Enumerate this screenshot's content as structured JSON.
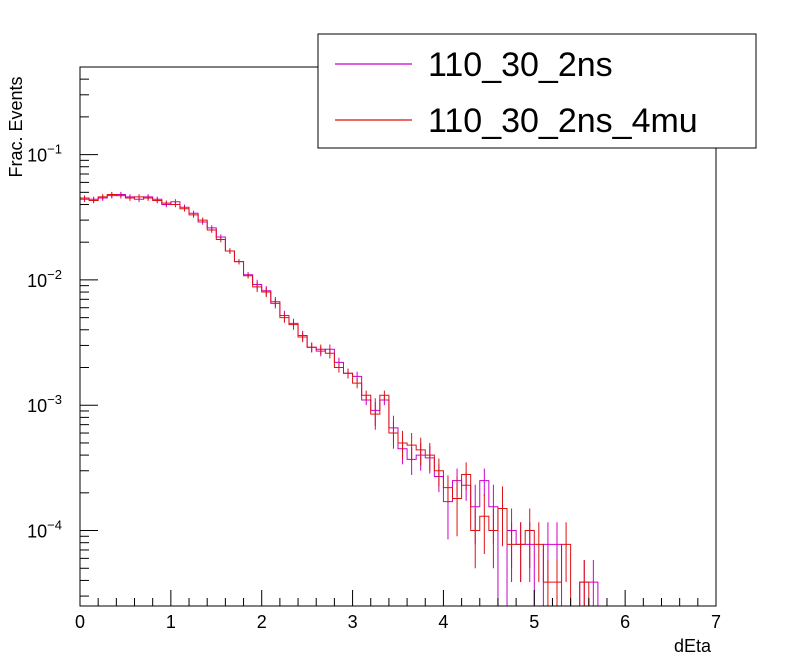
{
  "chart_data": {
    "type": "line",
    "style": "step-histogram",
    "xlabel": "dEta",
    "ylabel": "Frac. Events",
    "xlim": [
      0,
      7
    ],
    "ylim": [
      2.5e-05,
      0.5
    ],
    "yscale": "log",
    "grid": false,
    "legend_position": "top-right",
    "x_ticks": [
      "0",
      "1",
      "2",
      "3",
      "4",
      "5",
      "6",
      "7"
    ],
    "y_ticks": [
      {
        "value": 0.1,
        "base": "10",
        "exp": "−1"
      },
      {
        "value": 0.01,
        "base": "10",
        "exp": "−2"
      },
      {
        "value": 0.001,
        "base": "10",
        "exp": "−3"
      },
      {
        "value": 0.0001,
        "base": "10",
        "exp": "−4"
      }
    ],
    "bin_edges": [
      0,
      0.1,
      0.2,
      0.3,
      0.4,
      0.5,
      0.6,
      0.7,
      0.8,
      0.9,
      1.0,
      1.1,
      1.2,
      1.3,
      1.4,
      1.5,
      1.6,
      1.7,
      1.8,
      1.9,
      2.0,
      2.1,
      2.2,
      2.3,
      2.4,
      2.5,
      2.6,
      2.7,
      2.8,
      2.9,
      3.0,
      3.1,
      3.2,
      3.3,
      3.4,
      3.5,
      3.6,
      3.7,
      3.8,
      3.9,
      4.0,
      4.1,
      4.2,
      4.3,
      4.4,
      4.5,
      4.6,
      4.7,
      4.8,
      4.9,
      5.0,
      5.1,
      5.2,
      5.3,
      5.4,
      5.5,
      5.6,
      5.7
    ],
    "series": [
      {
        "name": "110_30_2ns",
        "color": "#cc00cc",
        "values": [
          0.044,
          0.044,
          0.045,
          0.047,
          0.048,
          0.046,
          0.044,
          0.046,
          0.044,
          0.04,
          0.042,
          0.038,
          0.034,
          0.029,
          0.026,
          0.022,
          0.017,
          0.014,
          0.011,
          0.0092,
          0.0082,
          0.0065,
          0.0052,
          0.0045,
          0.0036,
          0.0029,
          0.0027,
          0.0028,
          0.0022,
          0.0018,
          0.0017,
          0.0011,
          0.00091,
          0.0011,
          0.00066,
          0.00045,
          0.00037,
          0.0004,
          0.00038,
          0.00027,
          0.00017,
          0.00025,
          0.00023,
          0.000155,
          0.00025,
          0.000155,
          0.0,
          0.0001,
          7.76e-05,
          7.76e-05,
          0.0,
          7.76e-05,
          7.76e-05,
          0.0,
          0.0,
          3.88e-05,
          3.88e-05
        ]
      },
      {
        "name": "110_30_2ns_4mu",
        "color": "#dd1111",
        "values": [
          0.045,
          0.043,
          0.046,
          0.048,
          0.047,
          0.045,
          0.046,
          0.045,
          0.043,
          0.041,
          0.04,
          0.037,
          0.033,
          0.03,
          0.025,
          0.021,
          0.017,
          0.014,
          0.0108,
          0.0088,
          0.008,
          0.0067,
          0.005,
          0.0044,
          0.0035,
          0.0029,
          0.0028,
          0.0026,
          0.002,
          0.0018,
          0.0015,
          0.0012,
          0.00085,
          0.0012,
          0.0006,
          0.0005,
          0.00048,
          0.00044,
          0.0004,
          0.0003,
          0.00022,
          0.00018,
          0.00028,
          0.0001,
          0.00013,
          0.0001,
          0.00015,
          7.76e-05,
          7.76e-05,
          0.0001,
          7.76e-05,
          3.88e-05,
          3.88e-05,
          7.76e-05,
          0.0,
          3.88e-05,
          0.0
        ]
      }
    ]
  }
}
